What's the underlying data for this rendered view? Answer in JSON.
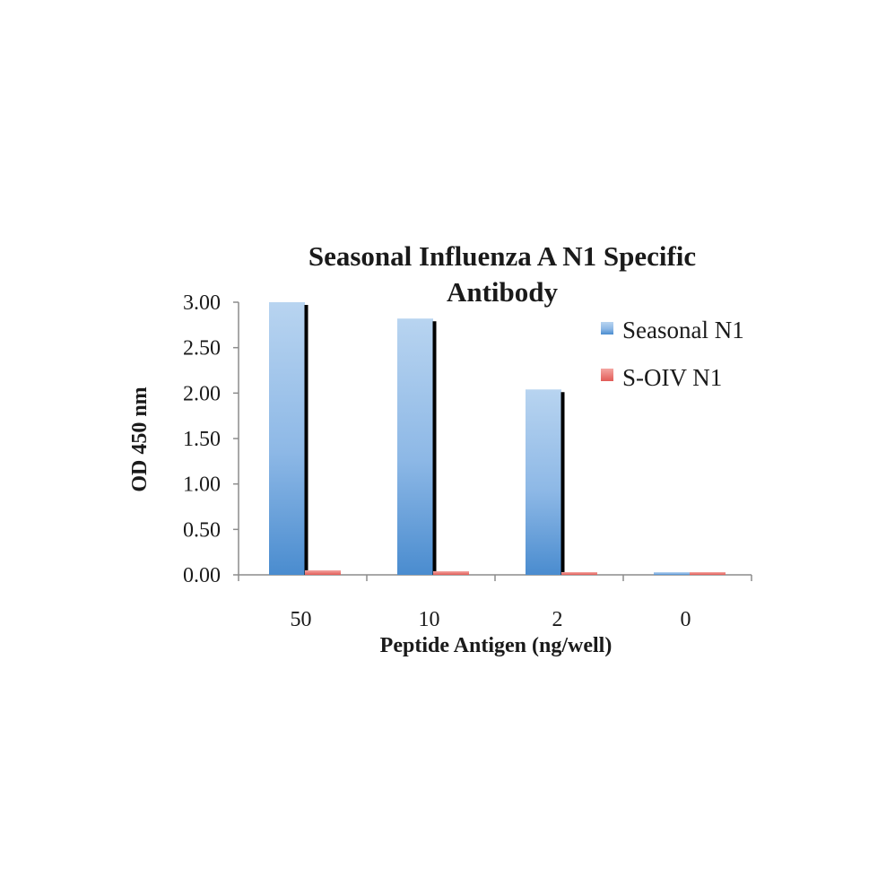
{
  "chart_data": {
    "type": "bar",
    "title_lines": [
      "Seasonal Influenza A N1 Specific",
      "Antibody"
    ],
    "xlabel": "Peptide Antigen (ng/well)",
    "ylabel": "OD 450 nm",
    "categories": [
      "50",
      "10",
      "2",
      "0"
    ],
    "ylim": [
      0,
      3
    ],
    "yticks": [
      "0.00",
      "0.50",
      "1.00",
      "1.50",
      "2.00",
      "2.50",
      "3.00"
    ],
    "ytick_values": [
      0,
      0.5,
      1,
      1.5,
      2,
      2.5,
      3
    ],
    "grid": false,
    "legend_position": "top-right",
    "series": [
      {
        "name": "Seasonal N1",
        "values": [
          3.0,
          2.82,
          2.04,
          0.03
        ],
        "color": "#5b9bd5"
      },
      {
        "name": "S-OIV N1",
        "values": [
          0.05,
          0.04,
          0.03,
          0.03
        ],
        "color": "#e9726d"
      }
    ]
  }
}
